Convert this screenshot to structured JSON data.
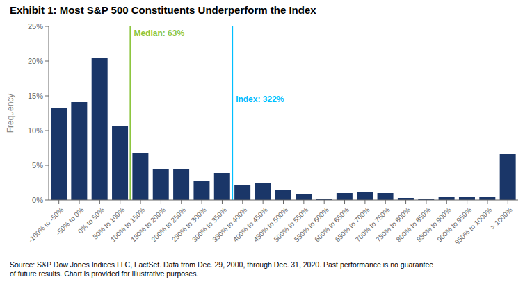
{
  "chart_data": {
    "type": "bar",
    "title": "Exhibit 1: Most S&P 500 Constituents Underperform the Index",
    "ylabel": "Frequency",
    "categories": [
      "-100% to -50%",
      "-50% to 0%",
      "0% to 50%",
      "50% to 100%",
      "100% to 150%",
      "150% to 200%",
      "200% to 250%",
      "250% to 300%",
      "300% to 350%",
      "350% to 400%",
      "400% to 450%",
      "450% to 500%",
      "500% to 550%",
      "550% to 600%",
      "600% to 650%",
      "650% to 700%",
      "700% to 750%",
      "750% to 800%",
      "800% to 850%",
      "850% to 900%",
      "900% to 950%",
      "950% to 1000%",
      "> 1000%"
    ],
    "values": [
      13.3,
      14.1,
      20.5,
      10.6,
      6.8,
      4.4,
      4.5,
      2.7,
      3.9,
      2.2,
      2.4,
      1.5,
      0.9,
      0.2,
      1.0,
      1.1,
      1.0,
      0.3,
      0.2,
      0.5,
      0.5,
      0.5,
      6.6
    ],
    "color": "#1a3668",
    "ylim": [
      0,
      25
    ],
    "yticks": [
      {
        "value": 0,
        "label": "0%"
      },
      {
        "value": 5,
        "label": "5%"
      },
      {
        "value": 10,
        "label": "10%"
      },
      {
        "value": 15,
        "label": "15%"
      },
      {
        "value": 20,
        "label": "20%"
      },
      {
        "value": 25,
        "label": "25%"
      }
    ],
    "grid": false,
    "annotations": [
      {
        "text": "Median: 63%",
        "x": 3.5,
        "y": 24.0,
        "color": "#8dc63f"
      },
      {
        "text": "Index: 322%",
        "x": 8.5,
        "y": 14.5,
        "color": "#00bfff"
      }
    ],
    "source": "Source: S&P Dow Jones Indices LLC, FactSet. Data from Dec. 29, 2000, through Dec. 31, 2020. Past performance is no guarantee\nof future results. Chart is provided for illustrative purposes."
  }
}
